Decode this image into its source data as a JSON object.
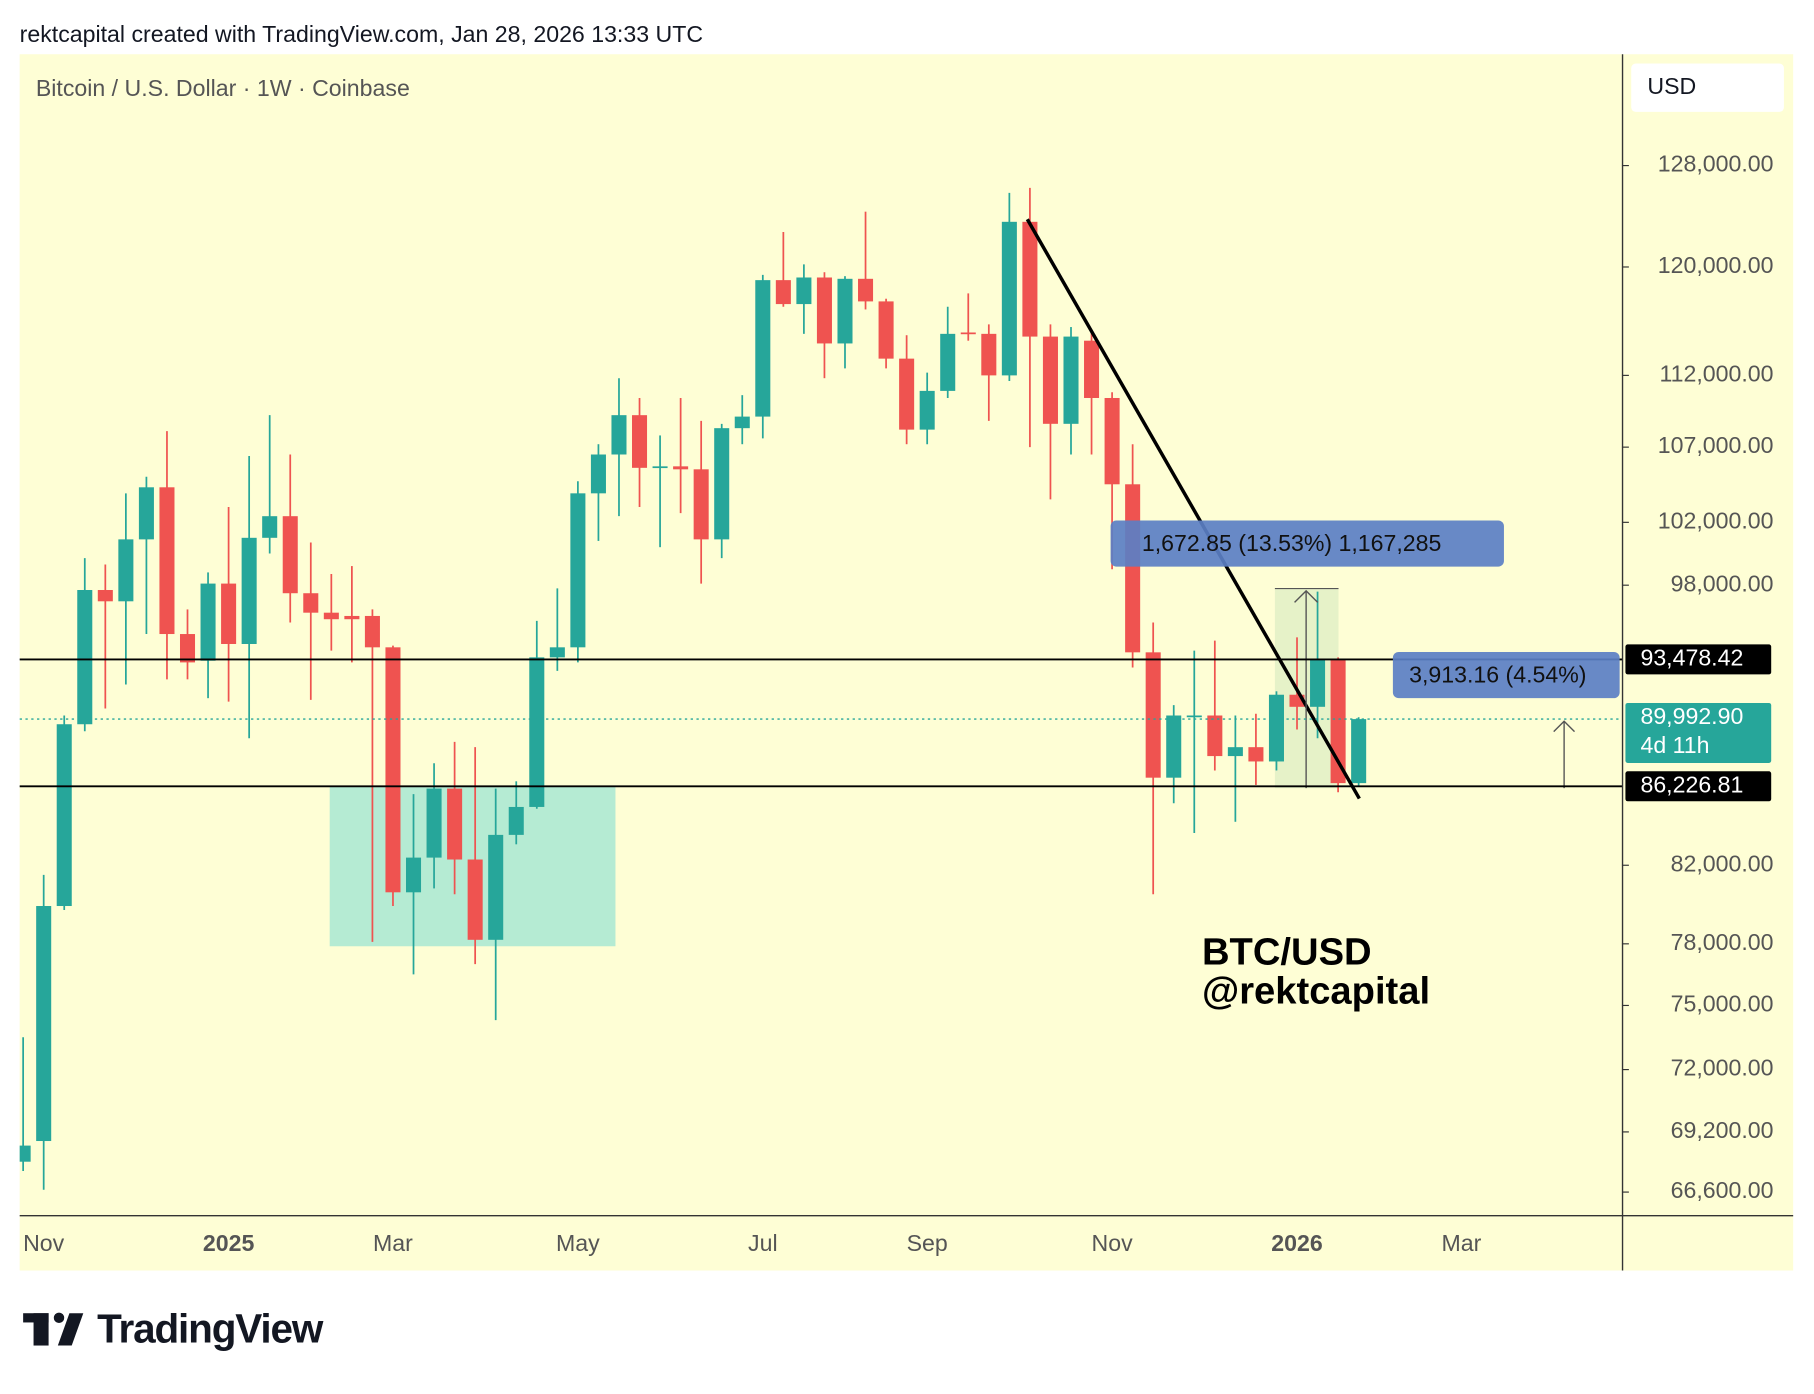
{
  "header": "rektcapital created with TradingView.com, Jan 28, 2026 13:33 UTC",
  "footer": {
    "logo": "TradingView"
  },
  "chart_data": {
    "type": "candlestick",
    "title": "Bitcoin / U.S. Dollar · 1W · Coinbase",
    "currency": "USD",
    "log_scale": true,
    "up_color": "#26a69a",
    "down_color": "#ef5350",
    "categories": [
      null,
      "Nov",
      null,
      null,
      null,
      null,
      null,
      null,
      null,
      null,
      "2025",
      null,
      null,
      null,
      null,
      null,
      null,
      null,
      "Mar",
      null,
      null,
      null,
      null,
      null,
      null,
      null,
      null,
      "May",
      null,
      null,
      null,
      null,
      null,
      null,
      null,
      null,
      "Jul",
      null,
      null,
      null,
      null,
      null,
      null,
      null,
      "Sep",
      null,
      null,
      null,
      null,
      null,
      null,
      null,
      null,
      "Nov",
      null,
      null,
      null,
      null,
      null,
      null,
      null,
      null,
      "2026",
      null,
      null,
      null,
      null,
      null,
      null,
      null,
      "Mar",
      null,
      null,
      null,
      null,
      null,
      null,
      null
    ],
    "open": [
      67900,
      68800,
      79900,
      89700,
      97700,
      97000,
      100900,
      104300,
      95000,
      93400,
      98100,
      94400,
      101000,
      102400,
      97500,
      96300,
      96100,
      96100,
      94200,
      80600,
      82400,
      86100,
      82300,
      78200,
      83600,
      85100,
      93600,
      94200,
      103900,
      106500,
      109200,
      105600,
      105700,
      105500,
      100900,
      108300,
      109100,
      119000,
      117200,
      119200,
      114300,
      119100,
      117400,
      113200,
      108200,
      110900,
      115100,
      115000,
      112000,
      123500,
      114800,
      108600,
      114500,
      110400,
      104500,
      93900,
      86700,
      90100,
      90200,
      87900,
      88400,
      87600,
      91400,
      90700,
      93500,
      86400,
      null,
      null,
      null,
      null,
      null,
      null,
      null,
      null,
      null,
      null,
      null,
      null
    ],
    "high": [
      73500,
      81500,
      90200,
      99700,
      99300,
      103900,
      105000,
      108100,
      96500,
      98800,
      103000,
      106400,
      109200,
      106500,
      100700,
      98700,
      99200,
      96500,
      94300,
      85800,
      87500,
      88700,
      88400,
      86100,
      86500,
      95800,
      97800,
      104700,
      107200,
      111800,
      110400,
      107800,
      110400,
      108800,
      108600,
      110600,
      119400,
      122700,
      120200,
      119600,
      119300,
      124300,
      117600,
      114900,
      112200,
      117000,
      118000,
      115700,
      125800,
      126200,
      115700,
      115500,
      115300,
      110800,
      107200,
      95700,
      90800,
      94000,
      94600,
      90200,
      90300,
      91600,
      94800,
      97600,
      93600,
      90100,
      null,
      null,
      null,
      null,
      null,
      null,
      null,
      null,
      null,
      null,
      null,
      null
    ],
    "low": [
      67500,
      66700,
      79700,
      89300,
      90600,
      92000,
      95000,
      92300,
      92300,
      91200,
      91000,
      88900,
      100000,
      95700,
      91100,
      94000,
      93300,
      78100,
      79900,
      76500,
      80800,
      80500,
      77000,
      74300,
      83100,
      85000,
      92800,
      93300,
      100800,
      102400,
      103000,
      100400,
      102600,
      98100,
      99700,
      107200,
      107600,
      117000,
      115000,
      111800,
      112500,
      116800,
      112500,
      107200,
      107200,
      110400,
      114500,
      108800,
      111600,
      107000,
      103500,
      106500,
      106500,
      99000,
      93000,
      80500,
      85300,
      83700,
      87100,
      84300,
      86300,
      87100,
      89400,
      88900,
      85900,
      86200,
      null,
      null,
      null,
      null,
      null,
      null,
      null,
      null,
      null,
      null,
      null,
      null
    ],
    "close": [
      68600,
      79900,
      89700,
      97700,
      97000,
      100900,
      104300,
      95000,
      93300,
      98100,
      94400,
      101000,
      102400,
      97500,
      96300,
      95900,
      95900,
      94200,
      80600,
      82400,
      86100,
      82300,
      78200,
      83600,
      85100,
      93600,
      94200,
      103900,
      106500,
      109200,
      105600,
      105700,
      105500,
      100900,
      108300,
      109100,
      119000,
      117200,
      119200,
      114300,
      119100,
      117400,
      113200,
      108200,
      110900,
      115000,
      115000,
      112000,
      123500,
      114800,
      108600,
      114800,
      110400,
      104500,
      93900,
      86700,
      90200,
      90200,
      87900,
      88400,
      87600,
      91400,
      90700,
      93500,
      86400,
      89992.9,
      null,
      null,
      null,
      null,
      null,
      null,
      null,
      null,
      null,
      null,
      null,
      null
    ],
    "ylim": [
      65630,
      137400
    ],
    "yticks": [
      {
        "value": 128000,
        "label": "128,000.00"
      },
      {
        "value": 120000,
        "label": "120,000.00"
      },
      {
        "value": 112000,
        "label": "112,000.00"
      },
      {
        "value": 107000,
        "label": "107,000.00"
      },
      {
        "value": 102000,
        "label": "102,000.00"
      },
      {
        "value": 98000,
        "label": "98,000.00"
      },
      {
        "value": 82000,
        "label": "82,000.00"
      },
      {
        "value": 78000,
        "label": "78,000.00"
      },
      {
        "value": 75000,
        "label": "75,000.00"
      },
      {
        "value": 72000,
        "label": "72,000.00"
      },
      {
        "value": 69200,
        "label": "69,200.00"
      },
      {
        "value": 66600,
        "label": "66,600.00"
      }
    ],
    "price_lines": {
      "values": [
        93478.42,
        89992.9,
        86226.81
      ],
      "value_labels": [
        "93,478.42",
        "89,992.90",
        "86,226.81"
      ]
    },
    "countdown": "4d 11h",
    "measurements": [
      "1,672.85 (13.53%) 1,167,285",
      "3,913.16 (4.54%)"
    ],
    "watermark": [
      "BTC/USD",
      "@rektcapital"
    ]
  }
}
